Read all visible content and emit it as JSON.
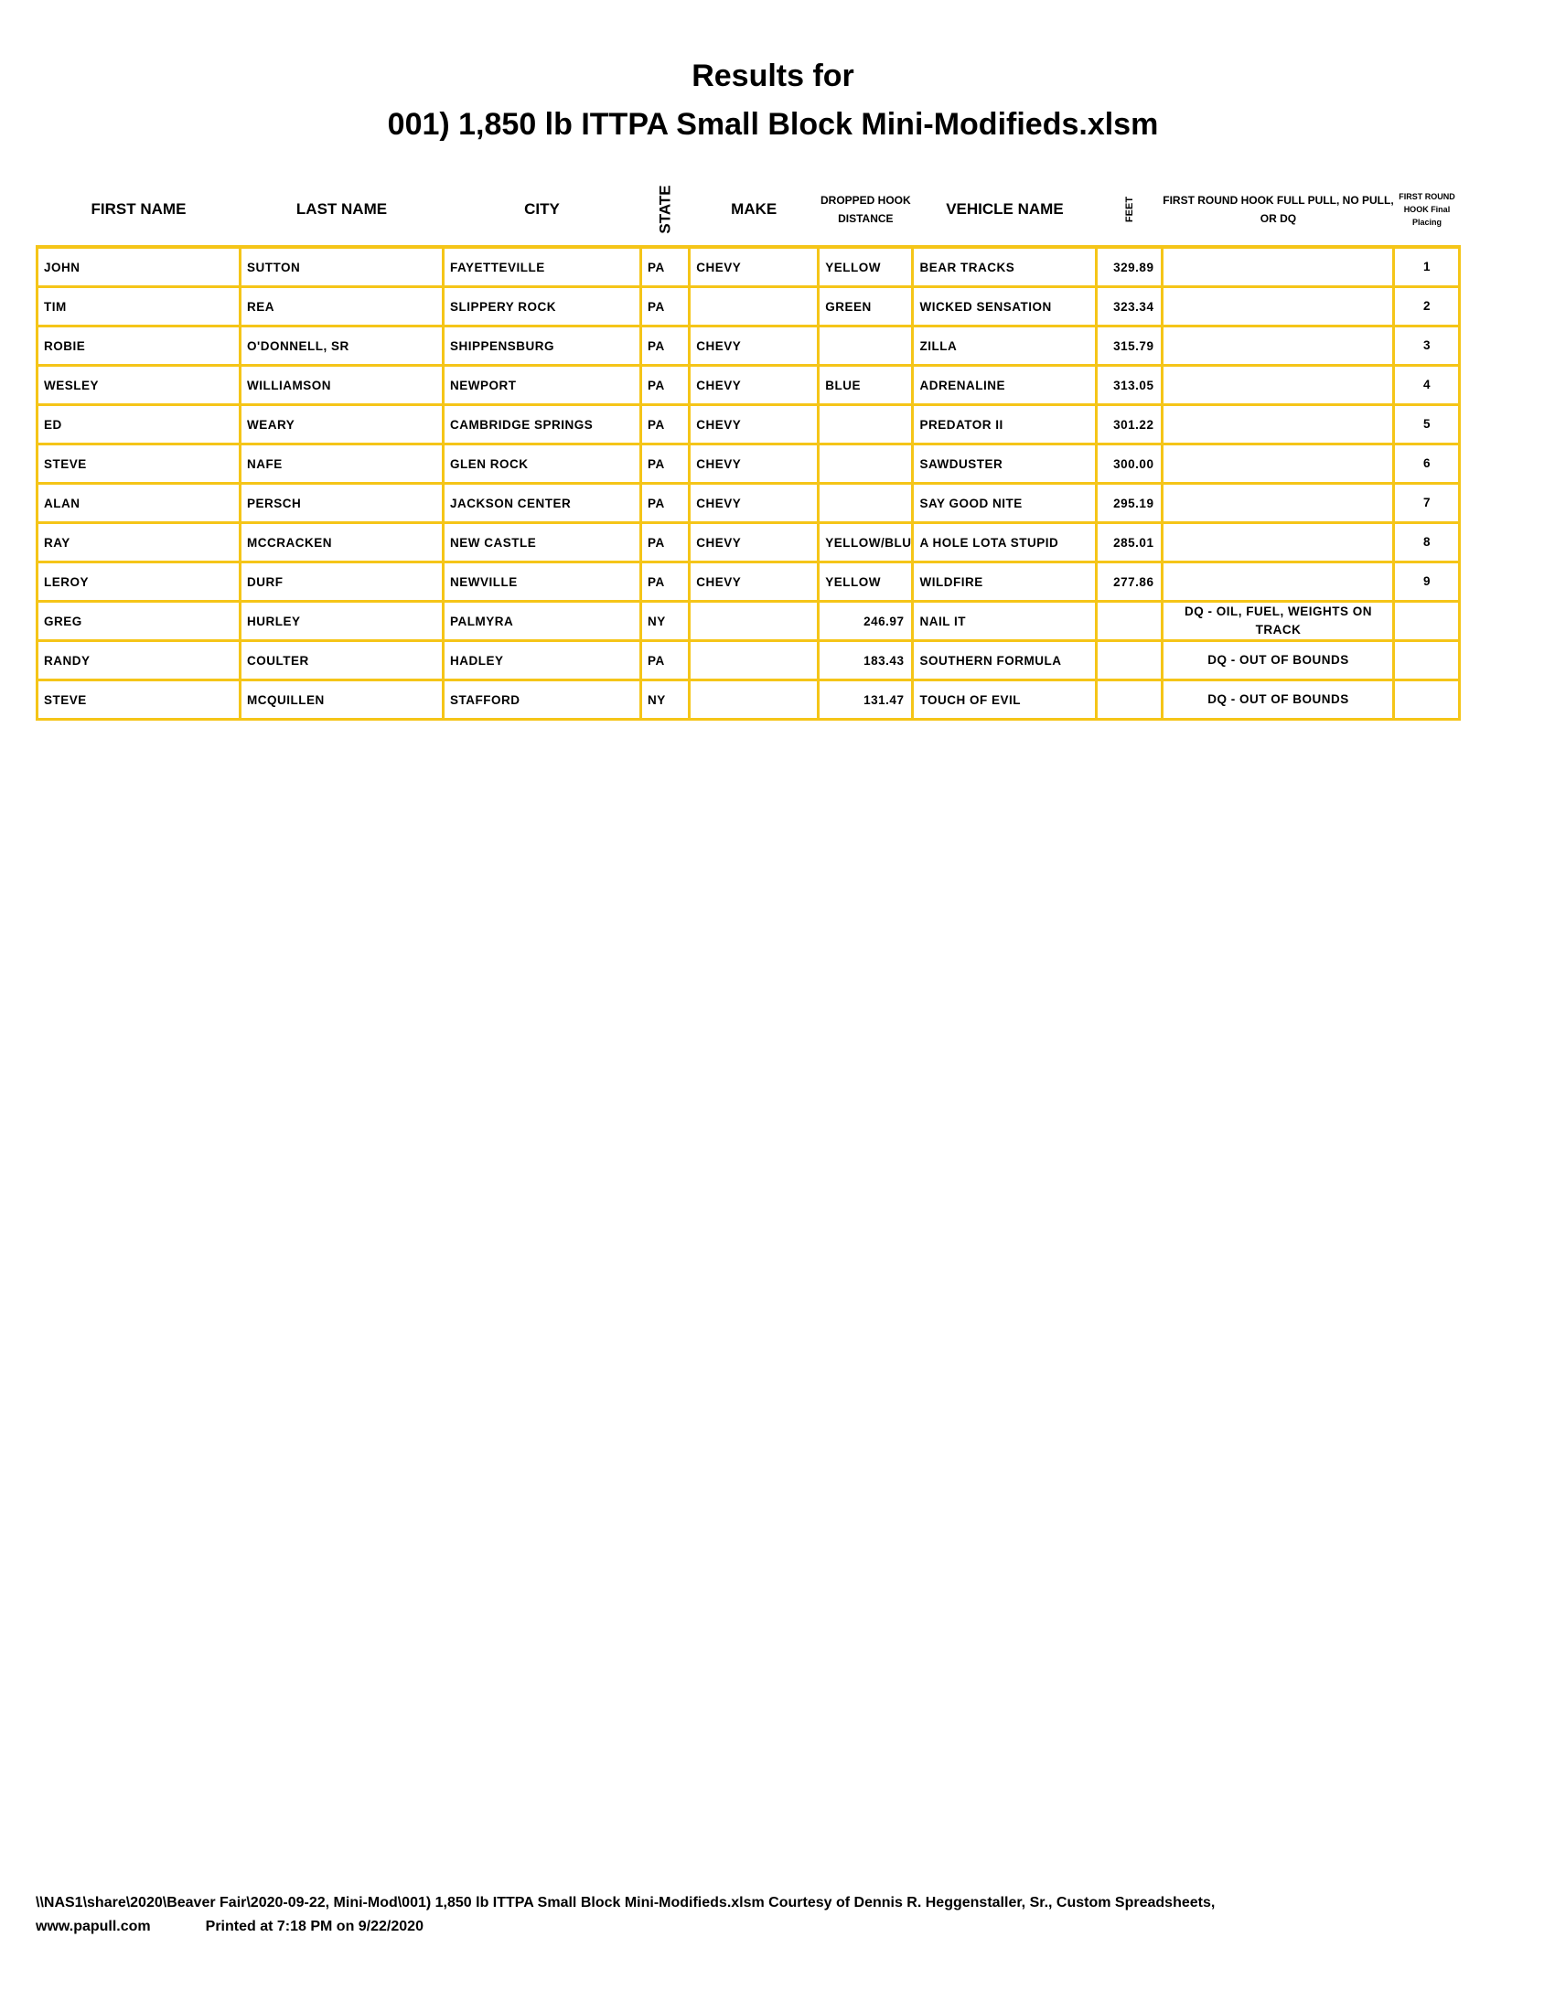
{
  "title_line1": "Results for",
  "title_line2": "001) 1,850 lb ITTPA Small Block Mini-Modifieds.xlsm",
  "colors": {
    "grid": "#f5c518"
  },
  "headers": [
    "FIRST NAME",
    "LAST NAME",
    "CITY",
    "STATE",
    "MAKE",
    "DROPPED HOOK DISTANCE",
    "VEHICLE NAME",
    "FEET",
    "FIRST ROUND HOOK FULL PULL, NO PULL, OR DQ",
    "FIRST ROUND HOOK Final Placing"
  ],
  "rows": [
    [
      "JOHN",
      "SUTTON",
      "FAYETTEVILLE",
      "PA",
      "CHEVY",
      "YELLOW",
      "BEAR TRACKS",
      "329.89",
      "",
      "1"
    ],
    [
      "TIM",
      "REA",
      "SLIPPERY ROCK",
      "PA",
      "",
      "GREEN",
      "WICKED SENSATION",
      "323.34",
      "",
      "2"
    ],
    [
      "ROBIE",
      "O'DONNELL, SR",
      "SHIPPENSBURG",
      "PA",
      "CHEVY",
      "",
      "ZILLA",
      "315.79",
      "",
      "3"
    ],
    [
      "WESLEY",
      "WILLIAMSON",
      "NEWPORT",
      "PA",
      "CHEVY",
      "BLUE",
      "ADRENALINE",
      "313.05",
      "",
      "4"
    ],
    [
      "ED",
      "WEARY",
      "CAMBRIDGE SPRINGS",
      "PA",
      "CHEVY",
      "",
      "PREDATOR II",
      "301.22",
      "",
      "5"
    ],
    [
      "STEVE",
      "NAFE",
      "GLEN ROCK",
      "PA",
      "CHEVY",
      "",
      "SAWDUSTER",
      "300.00",
      "",
      "6"
    ],
    [
      "ALAN",
      "PERSCH",
      "JACKSON CENTER",
      "PA",
      "CHEVY",
      "",
      "SAY GOOD NITE",
      "295.19",
      "",
      "7"
    ],
    [
      "RAY",
      "MCCRACKEN",
      "NEW CASTLE",
      "PA",
      "CHEVY",
      "YELLOW/BLU",
      "A HOLE LOTA STUPID",
      "285.01",
      "",
      "8"
    ],
    [
      "LEROY",
      "DURF",
      "NEWVILLE",
      "PA",
      "CHEVY",
      "YELLOW",
      "WILDFIRE",
      "277.86",
      "",
      "9"
    ],
    [
      "GREG",
      "HURLEY",
      "PALMYRA",
      "NY",
      "",
      "246.97",
      "NAIL IT",
      "",
      "DQ - OIL, FUEL, WEIGHTS ON TRACK",
      ""
    ],
    [
      "RANDY",
      "COULTER",
      "HADLEY",
      "PA",
      "",
      "183.43",
      "SOUTHERN FORMULA",
      "",
      "DQ - OUT OF BOUNDS",
      ""
    ],
    [
      "STEVE",
      "MCQUILLEN",
      "STAFFORD",
      "NY",
      "",
      "131.47",
      "TOUCH OF EVIL",
      "",
      "DQ - OUT OF BOUNDS",
      ""
    ]
  ],
  "footer_line1": "\\\\NAS1\\share\\2020\\Beaver Fair\\2020-09-22, Mini-Mod\\001) 1,850 lb ITTPA Small Block Mini-Modifieds.xlsm  Courtesy of Dennis R. Heggenstaller, Sr., Custom Spreadsheets,",
  "footer_site": "www.papull.com",
  "footer_printed": "Printed at 7:18 PM on 9/22/2020"
}
